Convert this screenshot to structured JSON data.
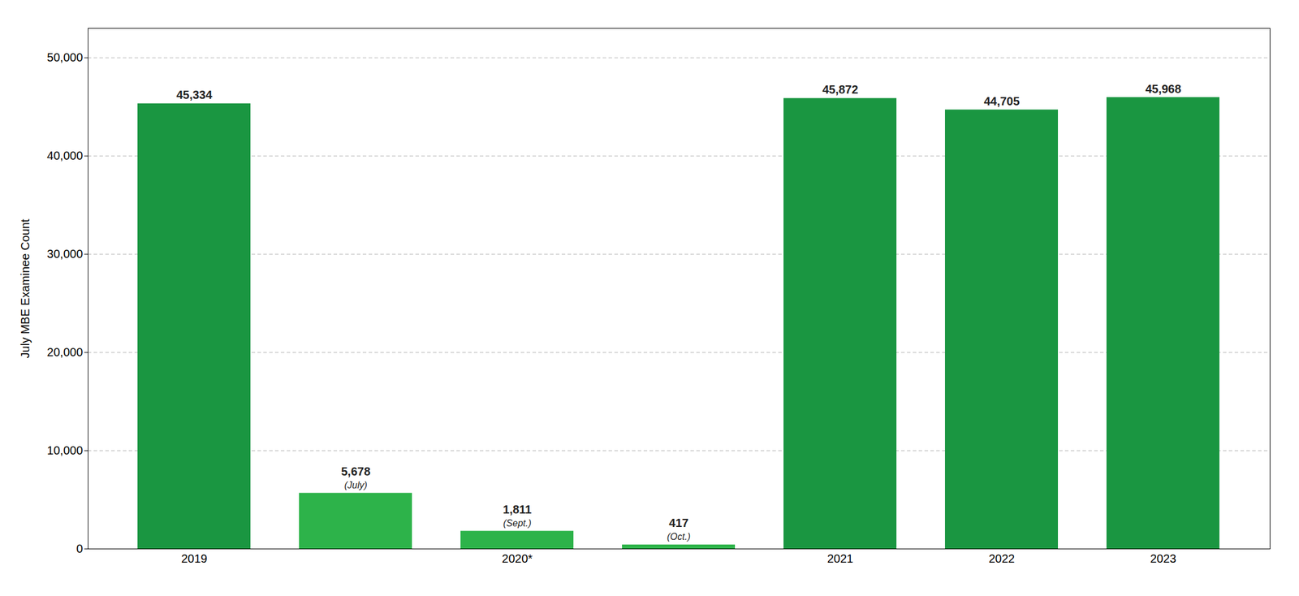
{
  "chart_data": {
    "type": "bar",
    "categories": [
      "2019",
      null,
      "2020*",
      null,
      "2021",
      "2022",
      "2023"
    ],
    "values": [
      45334,
      5678,
      1811,
      417,
      45872,
      44705,
      45968
    ],
    "value_labels": [
      "45,334",
      "5,678",
      "1,811",
      "417",
      "45,872",
      "44,705",
      "45,968"
    ],
    "annotations": [
      null,
      "(July)",
      "(Sept.)",
      "(Oct.)",
      null,
      null,
      null
    ],
    "colors": [
      "#1a9641",
      "#2db34a",
      "#2db34a",
      "#2db34a",
      "#1a9641",
      "#1a9641",
      "#1a9641"
    ],
    "ylabel": "July MBE Examinee Count",
    "ylim": [
      0,
      53000
    ],
    "yticks": [
      0,
      {
        "value": 10000,
        "label": "10,000"
      },
      {
        "value": 20000,
        "label": "20,000"
      },
      {
        "value": 30000,
        "label": "30,000"
      },
      {
        "value": 40000,
        "label": "40,000"
      },
      {
        "value": 50000,
        "label": "50,000"
      }
    ],
    "grid": true,
    "data_labels": true
  }
}
